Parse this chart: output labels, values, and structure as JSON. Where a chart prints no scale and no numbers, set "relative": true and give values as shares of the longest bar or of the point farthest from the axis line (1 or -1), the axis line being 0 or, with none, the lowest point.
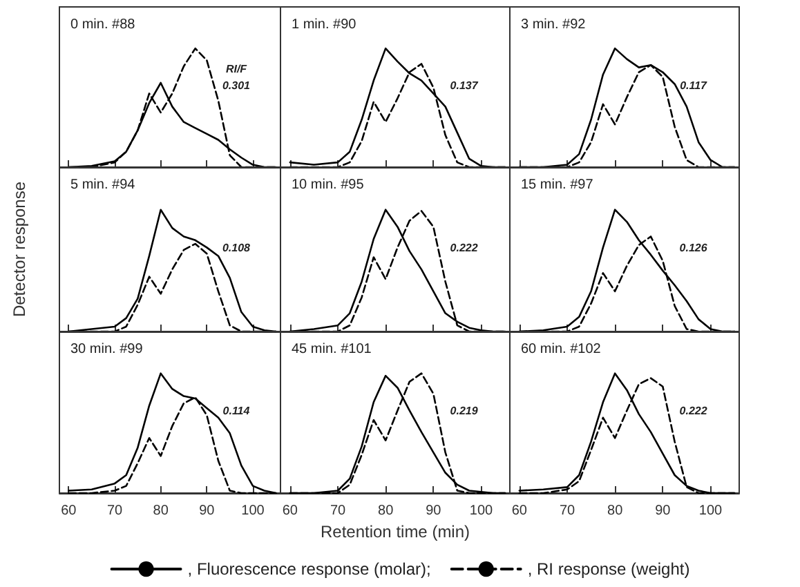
{
  "chart_data": [
    {
      "type": "line",
      "title": "0 min. #88",
      "annotations": [
        "RI/F",
        "0.301"
      ],
      "relative": true,
      "xlim": [
        58,
        106
      ],
      "xticks": [
        60,
        70,
        80,
        90,
        100
      ],
      "tick_labels": false,
      "marker": "none",
      "x": [
        60,
        65,
        70,
        72.5,
        75,
        77.5,
        80,
        82.5,
        85,
        87.5,
        90,
        92.5,
        95,
        97.5,
        100,
        102.5,
        105
      ],
      "series": [
        {
          "color": "#000000",
          "line_style": "solid",
          "values": [
            0,
            0.01,
            0.05,
            0.13,
            0.31,
            0.54,
            0.71,
            0.51,
            0.38,
            0.33,
            0.28,
            0.23,
            0.15,
            0.08,
            0.02,
            0,
            0
          ]
        },
        {
          "color": "#000000",
          "line_style": "dashed",
          "values": [
            0,
            0,
            0.04,
            0.13,
            0.31,
            0.62,
            0.46,
            0.62,
            0.85,
            1,
            0.9,
            0.56,
            0.1,
            0,
            0,
            0,
            0
          ]
        }
      ]
    },
    {
      "type": "line",
      "title": "1 min. #90",
      "annotations": [
        "0.137"
      ],
      "relative": true,
      "xlim": [
        58,
        106
      ],
      "xticks": [
        60,
        70,
        80,
        90,
        100
      ],
      "tick_labels": false,
      "marker": "none",
      "x": [
        60,
        65,
        70,
        72.5,
        75,
        77.5,
        80,
        82.5,
        85,
        87.5,
        90,
        92.5,
        95,
        97.5,
        100,
        102.5,
        105
      ],
      "series": [
        {
          "color": "#000000",
          "line_style": "solid",
          "values": [
            0.04,
            0.02,
            0.04,
            0.13,
            0.4,
            0.73,
            1,
            0.89,
            0.79,
            0.73,
            0.62,
            0.51,
            0.29,
            0.07,
            0.01,
            0,
            0
          ]
        },
        {
          "color": "#000000",
          "line_style": "dashed",
          "values": [
            0,
            0,
            0,
            0.04,
            0.22,
            0.55,
            0.38,
            0.58,
            0.8,
            0.87,
            0.67,
            0.27,
            0.04,
            0,
            0,
            0,
            0
          ]
        }
      ]
    },
    {
      "type": "line",
      "title": "3 min. #92",
      "annotations": [
        "0.117"
      ],
      "relative": true,
      "xlim": [
        58,
        106
      ],
      "xticks": [
        60,
        70,
        80,
        90,
        100
      ],
      "tick_labels": false,
      "marker": "none",
      "x": [
        60,
        65,
        70,
        72.5,
        75,
        77.5,
        80,
        82.5,
        85,
        87.5,
        90,
        92.5,
        95,
        97.5,
        100,
        102.5,
        105
      ],
      "series": [
        {
          "color": "#000000",
          "line_style": "solid",
          "values": [
            0,
            0,
            0.02,
            0.11,
            0.4,
            0.78,
            1,
            0.91,
            0.84,
            0.86,
            0.8,
            0.7,
            0.51,
            0.21,
            0.06,
            0,
            0
          ]
        },
        {
          "color": "#000000",
          "line_style": "dashed",
          "values": [
            0,
            0,
            0,
            0.04,
            0.21,
            0.53,
            0.36,
            0.59,
            0.8,
            0.86,
            0.76,
            0.34,
            0.06,
            0,
            0,
            0,
            0
          ]
        }
      ]
    },
    {
      "type": "line",
      "title": "5 min. #94",
      "annotations": [
        "0.108"
      ],
      "ylabel": "Detector response",
      "relative": true,
      "xlim": [
        58,
        106
      ],
      "xticks": [
        60,
        70,
        80,
        90,
        100
      ],
      "tick_labels": false,
      "marker": "none",
      "x": [
        60,
        65,
        70,
        72.5,
        75,
        77.5,
        80,
        82.5,
        85,
        87.5,
        90,
        92.5,
        95,
        97.5,
        100,
        102.5,
        105
      ],
      "series": [
        {
          "color": "#000000",
          "line_style": "solid",
          "values": [
            0,
            0.02,
            0.04,
            0.11,
            0.27,
            0.62,
            1,
            0.85,
            0.78,
            0.75,
            0.69,
            0.62,
            0.44,
            0.16,
            0.04,
            0.01,
            0
          ]
        },
        {
          "color": "#000000",
          "line_style": "dashed",
          "values": [
            0,
            0,
            0,
            0.04,
            0.22,
            0.45,
            0.31,
            0.51,
            0.67,
            0.72,
            0.64,
            0.33,
            0.05,
            0,
            0,
            0,
            0
          ]
        }
      ]
    },
    {
      "type": "line",
      "title": "10 min. #95",
      "annotations": [
        "0.222"
      ],
      "relative": true,
      "xlim": [
        58,
        106
      ],
      "xticks": [
        60,
        70,
        80,
        90,
        100
      ],
      "tick_labels": false,
      "marker": "none",
      "x": [
        60,
        65,
        70,
        72.5,
        75,
        77.5,
        80,
        82.5,
        85,
        87.5,
        90,
        92.5,
        95,
        97.5,
        100,
        102.5,
        105
      ],
      "series": [
        {
          "color": "#000000",
          "line_style": "solid",
          "values": [
            0,
            0.02,
            0.05,
            0.15,
            0.41,
            0.76,
            1,
            0.86,
            0.66,
            0.51,
            0.33,
            0.15,
            0.08,
            0.03,
            0.01,
            0,
            0
          ]
        },
        {
          "color": "#000000",
          "line_style": "dashed",
          "values": [
            0,
            0,
            0,
            0.05,
            0.28,
            0.61,
            0.43,
            0.69,
            0.91,
            0.99,
            0.86,
            0.41,
            0.05,
            0,
            0,
            0,
            0
          ]
        }
      ]
    },
    {
      "type": "line",
      "title": "15 min. #97",
      "annotations": [
        "0.126"
      ],
      "relative": true,
      "xlim": [
        58,
        106
      ],
      "xticks": [
        60,
        70,
        80,
        90,
        100
      ],
      "tick_labels": false,
      "marker": "none",
      "x": [
        60,
        65,
        70,
        72.5,
        75,
        77.5,
        80,
        82.5,
        85,
        87.5,
        90,
        92.5,
        95,
        97.5,
        100,
        102.5,
        105
      ],
      "series": [
        {
          "color": "#000000",
          "line_style": "solid",
          "values": [
            0,
            0.01,
            0.04,
            0.12,
            0.33,
            0.69,
            1,
            0.9,
            0.75,
            0.63,
            0.5,
            0.38,
            0.25,
            0.1,
            0.02,
            0,
            0
          ]
        },
        {
          "color": "#000000",
          "line_style": "dashed",
          "values": [
            0,
            0,
            0,
            0.04,
            0.23,
            0.48,
            0.33,
            0.54,
            0.71,
            0.78,
            0.58,
            0.21,
            0.02,
            0,
            0,
            0,
            0
          ]
        }
      ]
    },
    {
      "type": "line",
      "title": "30 min. #99",
      "annotations": [
        "0.114"
      ],
      "relative": true,
      "xlim": [
        58,
        106
      ],
      "xticks": [
        60,
        70,
        80,
        90,
        100
      ],
      "tick_labels": "x",
      "marker": "none",
      "x": [
        60,
        65,
        70,
        72.5,
        75,
        77.5,
        80,
        82.5,
        85,
        87.5,
        90,
        92.5,
        95,
        97.5,
        100,
        102.5,
        105
      ],
      "series": [
        {
          "color": "#000000",
          "line_style": "solid",
          "values": [
            0.02,
            0.03,
            0.08,
            0.15,
            0.38,
            0.73,
            1,
            0.87,
            0.81,
            0.79,
            0.71,
            0.63,
            0.5,
            0.23,
            0.06,
            0.02,
            0
          ]
        },
        {
          "color": "#000000",
          "line_style": "dashed",
          "values": [
            0,
            0,
            0.02,
            0.06,
            0.25,
            0.46,
            0.31,
            0.56,
            0.75,
            0.8,
            0.65,
            0.27,
            0.02,
            0,
            0,
            0,
            0
          ]
        }
      ]
    },
    {
      "type": "line",
      "title": "45 min. #101",
      "annotations": [
        "0.219"
      ],
      "xlabel": "Retention time (min)",
      "relative": true,
      "xlim": [
        58,
        106
      ],
      "xticks": [
        60,
        70,
        80,
        90,
        100
      ],
      "tick_labels": "x",
      "marker": "none",
      "legend": "bottom",
      "x": [
        60,
        65,
        70,
        72.5,
        75,
        77.5,
        80,
        82.5,
        85,
        87.5,
        90,
        92.5,
        95,
        97.5,
        100,
        102.5,
        105
      ],
      "series": [
        {
          "name": ", Fluorescence response (molar);",
          "color": "#000000",
          "line_style": "solid",
          "values": [
            0,
            0,
            0.02,
            0.12,
            0.39,
            0.76,
            0.98,
            0.88,
            0.69,
            0.51,
            0.34,
            0.17,
            0.07,
            0.02,
            0.01,
            0,
            0
          ]
        },
        {
          "name": ", RI response (weight)",
          "color": "#000000",
          "line_style": "dashed",
          "values": [
            0,
            0,
            0,
            0.07,
            0.32,
            0.61,
            0.44,
            0.69,
            0.93,
            1,
            0.83,
            0.34,
            0.02,
            0,
            0,
            0,
            0
          ]
        }
      ]
    },
    {
      "type": "line",
      "title": "60 min. #102",
      "annotations": [
        "0.222"
      ],
      "relative": true,
      "xlim": [
        58,
        106
      ],
      "xticks": [
        60,
        70,
        80,
        90,
        100
      ],
      "tick_labels": "x",
      "marker": "none",
      "x": [
        60,
        65,
        70,
        72.5,
        75,
        77.5,
        80,
        82.5,
        85,
        87.5,
        90,
        92.5,
        95,
        97.5,
        100,
        102.5,
        105
      ],
      "series": [
        {
          "color": "#000000",
          "line_style": "solid",
          "values": [
            0.02,
            0.03,
            0.05,
            0.15,
            0.43,
            0.76,
            1,
            0.86,
            0.66,
            0.51,
            0.33,
            0.15,
            0.06,
            0.02,
            0,
            0,
            0
          ]
        },
        {
          "color": "#000000",
          "line_style": "dashed",
          "values": [
            0,
            0,
            0.03,
            0.1,
            0.36,
            0.63,
            0.46,
            0.69,
            0.91,
            0.96,
            0.89,
            0.43,
            0.05,
            0,
            0,
            0,
            0
          ]
        }
      ]
    }
  ]
}
